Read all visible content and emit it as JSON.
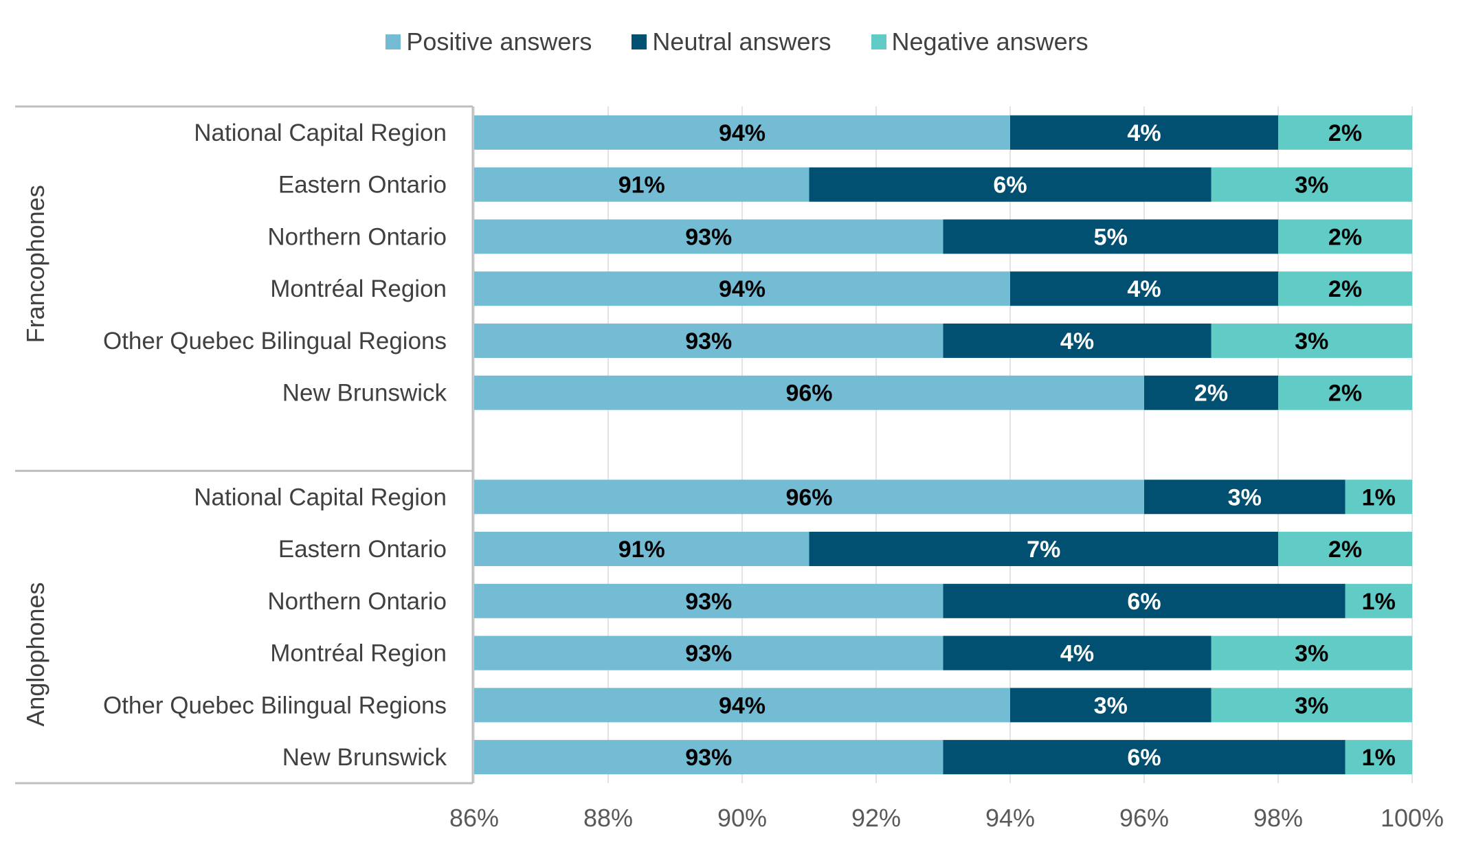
{
  "chart_data": {
    "type": "bar",
    "orientation": "horizontal",
    "stacked": true,
    "xlim": [
      86,
      100
    ],
    "x_ticks": [
      "86%",
      "88%",
      "90%",
      "92%",
      "94%",
      "96%",
      "98%",
      "100%"
    ],
    "grid": true,
    "legend_placement": "top",
    "colors": {
      "positive": "#74BBD4",
      "neutral": "#014F71",
      "negative": "#61CBC6"
    },
    "series": [
      {
        "name": "Positive answers",
        "key": "positive"
      },
      {
        "name": "Neutral answers",
        "key": "neutral"
      },
      {
        "name": "Negative answers",
        "key": "negative"
      }
    ],
    "groups": [
      {
        "name": "Francophones",
        "rows": [
          {
            "category": "National Capital Region",
            "positive": 94,
            "neutral": 4,
            "negative": 2
          },
          {
            "category": "Eastern Ontario",
            "positive": 91,
            "neutral": 6,
            "negative": 3
          },
          {
            "category": "Northern Ontario",
            "positive": 93,
            "neutral": 5,
            "negative": 2
          },
          {
            "category": "Montréal Region",
            "positive": 94,
            "neutral": 4,
            "negative": 2
          },
          {
            "category": "Other Quebec Bilingual Regions",
            "positive": 93,
            "neutral": 4,
            "negative": 3
          },
          {
            "category": "New Brunswick",
            "positive": 96,
            "neutral": 2,
            "negative": 2
          }
        ]
      },
      {
        "name": "Anglophones",
        "rows": [
          {
            "category": "National Capital Region",
            "positive": 96,
            "neutral": 3,
            "negative": 1
          },
          {
            "category": "Eastern Ontario",
            "positive": 91,
            "neutral": 7,
            "negative": 2
          },
          {
            "category": "Northern Ontario",
            "positive": 93,
            "neutral": 6,
            "negative": 1
          },
          {
            "category": "Montréal Region",
            "positive": 93,
            "neutral": 4,
            "negative": 3
          },
          {
            "category": "Other Quebec Bilingual Regions",
            "positive": 94,
            "neutral": 3,
            "negative": 3
          },
          {
            "category": "New Brunswick",
            "positive": 93,
            "neutral": 6,
            "negative": 1
          }
        ]
      }
    ]
  }
}
